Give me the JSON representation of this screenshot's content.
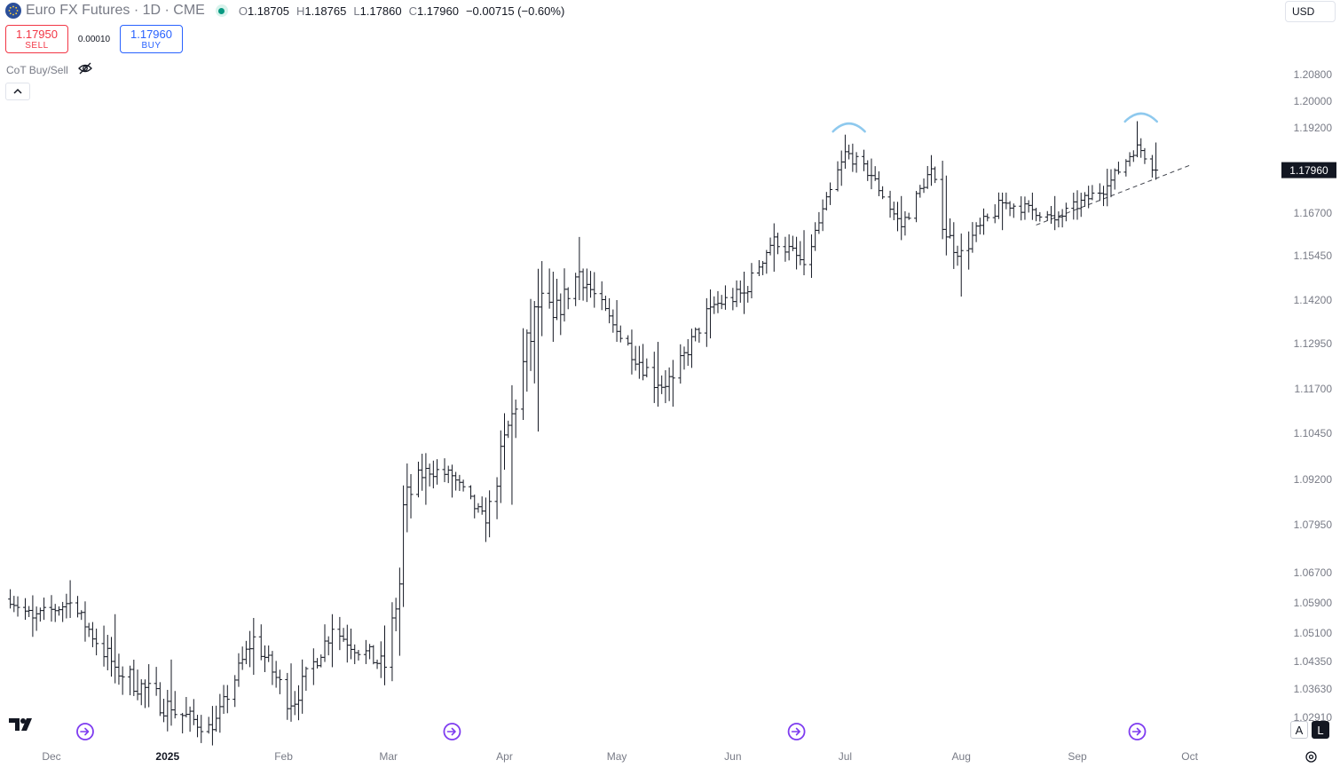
{
  "header": {
    "symbol_title": "Euro FX Futures · 1D · CME",
    "ohlc": [
      {
        "key": "O",
        "value": "1.18705"
      },
      {
        "key": "H",
        "value": "1.18765"
      },
      {
        "key": "L",
        "value": "1.17860"
      },
      {
        "key": "C",
        "value": "1.17960"
      }
    ],
    "change": "−0.00715 (−0.60%)"
  },
  "trade": {
    "sell_price": "1.17950",
    "sell_label": "SELL",
    "spread": "0.00010",
    "buy_price": "1.17960",
    "buy_label": "BUY"
  },
  "indicator": {
    "name": "CoT Buy/Sell"
  },
  "currency": "USD",
  "bottom": {
    "auto_label": "A",
    "log_label": "L"
  },
  "colors": {
    "sell": "#f23645",
    "buy": "#2962ff",
    "bar": "#131722",
    "arc": "#8ec9ee",
    "event": "#7e3cf0",
    "live": "#089981"
  },
  "chart_data": {
    "type": "ohlc-bar",
    "title": "Euro FX Futures · 1D · CME",
    "last_price": 1.1796,
    "last_price_label": "1.17960",
    "y_ticks": [
      {
        "v": 1.208,
        "label": "1.20800"
      },
      {
        "v": 1.2,
        "label": "1.20000"
      },
      {
        "v": 1.192,
        "label": "1.19200"
      },
      {
        "v": 1.167,
        "label": "1.16700"
      },
      {
        "v": 1.1545,
        "label": "1.15450"
      },
      {
        "v": 1.142,
        "label": "1.14200"
      },
      {
        "v": 1.1295,
        "label": "1.12950"
      },
      {
        "v": 1.117,
        "label": "1.11700"
      },
      {
        "v": 1.1045,
        "label": "1.10450"
      },
      {
        "v": 1.092,
        "label": "1.09200"
      },
      {
        "v": 1.0795,
        "label": "1.07950"
      },
      {
        "v": 1.067,
        "label": "1.06700"
      },
      {
        "v": 1.059,
        "label": "1.05900"
      },
      {
        "v": 1.051,
        "label": "1.05100"
      },
      {
        "v": 1.0435,
        "label": "1.04350"
      },
      {
        "v": 1.0363,
        "label": "1.03630"
      },
      {
        "v": 1.0291,
        "label": "1.02910"
      }
    ],
    "x_ticks": [
      {
        "date": "2024-12-01",
        "label": "Dec",
        "bold": false
      },
      {
        "date": "2025-01-01",
        "label": "2025",
        "bold": true
      },
      {
        "date": "2025-02-01",
        "label": "Feb",
        "bold": false
      },
      {
        "date": "2025-03-01",
        "label": "Mar",
        "bold": false
      },
      {
        "date": "2025-04-01",
        "label": "Apr",
        "bold": false
      },
      {
        "date": "2025-05-01",
        "label": "May",
        "bold": false
      },
      {
        "date": "2025-06-01",
        "label": "Jun",
        "bold": false
      },
      {
        "date": "2025-07-01",
        "label": "Jul",
        "bold": false
      },
      {
        "date": "2025-08-01",
        "label": "Aug",
        "bold": false
      },
      {
        "date": "2025-09-01",
        "label": "Sep",
        "bold": false
      },
      {
        "date": "2025-10-01",
        "label": "Oct",
        "bold": false
      }
    ],
    "anchors": [
      {
        "date": "2024-11-20",
        "close": 1.06,
        "high": 1.064,
        "low": 1.056
      },
      {
        "date": "2024-11-26",
        "close": 1.055,
        "high": 1.061,
        "low": 1.05
      },
      {
        "date": "2024-12-06",
        "close": 1.059,
        "high": 1.065,
        "low": 1.055
      },
      {
        "date": "2024-12-18",
        "close": 1.042,
        "high": 1.056,
        "low": 1.038
      },
      {
        "date": "2025-01-02",
        "close": 1.031,
        "high": 1.044,
        "low": 1.027
      },
      {
        "date": "2025-01-13",
        "close": 1.026,
        "high": 1.032,
        "low": 1.022
      },
      {
        "date": "2025-01-24",
        "close": 1.05,
        "high": 1.055,
        "low": 1.04
      },
      {
        "date": "2025-02-03",
        "close": 1.032,
        "high": 1.043,
        "low": 1.028
      },
      {
        "date": "2025-02-14",
        "close": 1.052,
        "high": 1.056,
        "low": 1.042
      },
      {
        "date": "2025-02-28",
        "close": 1.042,
        "high": 1.053,
        "low": 1.038
      },
      {
        "date": "2025-03-04",
        "close": 1.064,
        "high": 1.068,
        "low": 1.045
      },
      {
        "date": "2025-03-05",
        "close": 1.085,
        "high": 1.088,
        "low": 1.062
      },
      {
        "date": "2025-03-11",
        "close": 1.095,
        "high": 1.098,
        "low": 1.085
      },
      {
        "date": "2025-03-18",
        "close": 1.093,
        "high": 1.096,
        "low": 1.087
      },
      {
        "date": "2025-03-27",
        "close": 1.08,
        "high": 1.087,
        "low": 1.075
      },
      {
        "date": "2025-04-03",
        "close": 1.11,
        "high": 1.118,
        "low": 1.085
      },
      {
        "date": "2025-04-10",
        "close": 1.14,
        "high": 1.147,
        "low": 1.105
      },
      {
        "date": "2025-04-14",
        "close": 1.137,
        "high": 1.15,
        "low": 1.13
      },
      {
        "date": "2025-04-21",
        "close": 1.15,
        "high": 1.16,
        "low": 1.142
      },
      {
        "date": "2025-05-01",
        "close": 1.133,
        "high": 1.142,
        "low": 1.13
      },
      {
        "date": "2025-05-12",
        "close": 1.118,
        "high": 1.13,
        "low": 1.112
      },
      {
        "date": "2025-05-16",
        "close": 1.12,
        "high": 1.125,
        "low": 1.112
      },
      {
        "date": "2025-05-26",
        "close": 1.14,
        "high": 1.145,
        "low": 1.131
      },
      {
        "date": "2025-06-04",
        "close": 1.144,
        "high": 1.15,
        "low": 1.138
      },
      {
        "date": "2025-06-12",
        "close": 1.16,
        "high": 1.164,
        "low": 1.15
      },
      {
        "date": "2025-06-20",
        "close": 1.152,
        "high": 1.162,
        "low": 1.149
      },
      {
        "date": "2025-06-30",
        "close": 1.182,
        "high": 1.185,
        "low": 1.175
      },
      {
        "date": "2025-07-01",
        "close": 1.185,
        "high": 1.19,
        "low": 1.18
      },
      {
        "date": "2025-07-08",
        "close": 1.178,
        "high": 1.183,
        "low": 1.174
      },
      {
        "date": "2025-07-16",
        "close": 1.163,
        "high": 1.172,
        "low": 1.16
      },
      {
        "date": "2025-07-24",
        "close": 1.18,
        "high": 1.184,
        "low": 1.175
      },
      {
        "date": "2025-07-28",
        "close": 1.16,
        "high": 1.178,
        "low": 1.158
      },
      {
        "date": "2025-08-01",
        "close": 1.156,
        "high": 1.161,
        "low": 1.143
      },
      {
        "date": "2025-08-12",
        "close": 1.17,
        "high": 1.173,
        "low": 1.162
      },
      {
        "date": "2025-08-20",
        "close": 1.168,
        "high": 1.173,
        "low": 1.165
      },
      {
        "date": "2025-08-26",
        "close": 1.165,
        "high": 1.172,
        "low": 1.162
      },
      {
        "date": "2025-09-09",
        "close": 1.175,
        "high": 1.18,
        "low": 1.169
      },
      {
        "date": "2025-09-17",
        "close": 1.187,
        "high": 1.194,
        "low": 1.185
      },
      {
        "date": "2025-09-22",
        "close": 1.1796,
        "high": 1.1877,
        "low": 1.1786
      }
    ],
    "trendline": [
      {
        "date": "2025-08-21",
        "price": 1.1635
      },
      {
        "date": "2025-10-01",
        "price": 1.181
      }
    ],
    "arcs": [
      {
        "date": "2025-07-02",
        "price": 1.1925
      },
      {
        "date": "2025-09-18",
        "price": 1.1955
      }
    ],
    "event_markers": [
      "2024-12-10",
      "2025-03-18",
      "2025-06-18",
      "2025-09-17"
    ]
  }
}
